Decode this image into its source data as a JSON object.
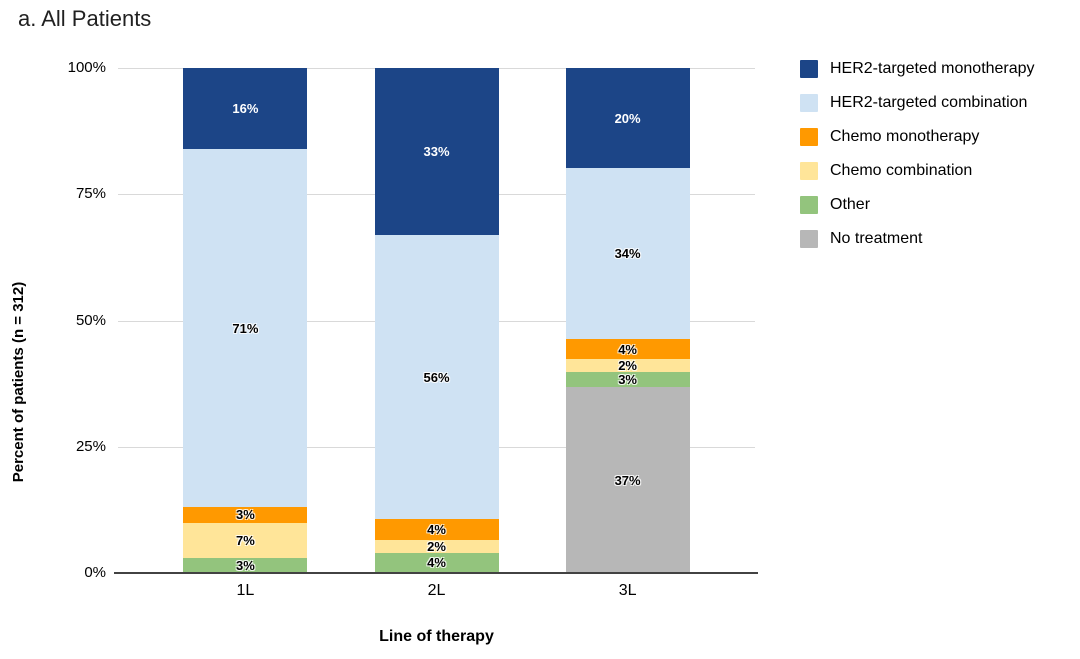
{
  "title": "a. All Patients",
  "y_axis": {
    "label": "Percent of patients (n = 312)",
    "tick_values": [
      100,
      75,
      50,
      25,
      0
    ],
    "tick_labels": [
      "100%",
      "75%",
      "50%",
      "25%",
      "0%"
    ]
  },
  "x_axis": {
    "label": "Line of therapy",
    "categories": [
      "1L",
      "2L",
      "3L"
    ]
  },
  "chart_data": {
    "type": "bar",
    "stacked": true,
    "title": "a. All Patients",
    "xlabel": "Line of therapy",
    "ylabel": "Percent of patients (n = 312)",
    "ylim": [
      0,
      100
    ],
    "grid": true,
    "legend_position": "right",
    "value_suffix": "%",
    "categories": [
      "1L",
      "2L",
      "3L"
    ],
    "series": [
      {
        "name": "HER2-targeted monotherapy",
        "color": "#1C4587",
        "label_color": "#FFFFFF",
        "values": [
          16,
          33,
          20
        ]
      },
      {
        "name": "HER2-targeted combination",
        "color": "#CFE2F3",
        "label_color": "#000000",
        "values": [
          71,
          56,
          34
        ]
      },
      {
        "name": "Chemo monotherapy",
        "color": "#FF9900",
        "label_color": "#000000",
        "values": [
          3,
          4,
          4
        ]
      },
      {
        "name": "Chemo combination",
        "color": "#FFE599",
        "label_color": "#000000",
        "values": [
          7,
          2,
          2
        ]
      },
      {
        "name": "Other",
        "color": "#93C47D",
        "label_color": "#000000",
        "values": [
          3,
          4,
          3
        ]
      },
      {
        "name": "No treatment",
        "color": "#B7B7B7",
        "label_color": "#000000",
        "values": [
          0,
          0,
          37
        ]
      }
    ]
  },
  "colors": {
    "gridline": "#D9D9D9",
    "axis_line": "#424242"
  }
}
